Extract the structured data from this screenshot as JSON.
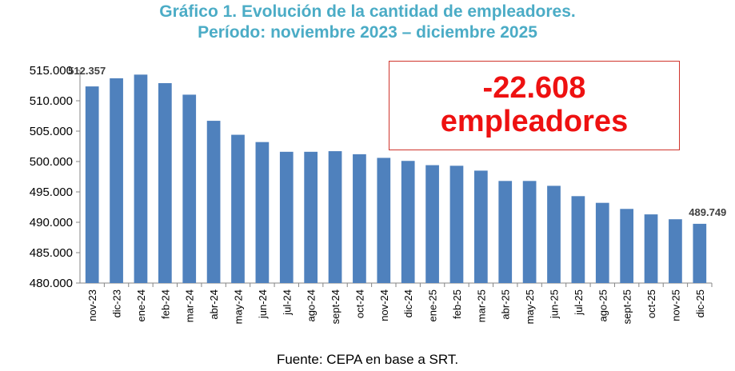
{
  "title_line_1": "Gráfico 1. Evolución de la cantidad de empleadores.",
  "title_line_2": "Período: noviembre 2023 – diciembre 2025",
  "callout": {
    "value": "-22.608",
    "label": "empleadores",
    "text_color": "#ee1111",
    "border_color": "#d0342c"
  },
  "source": "Fuente: CEPA en base a SRT.",
  "colors": {
    "bar": "#4f81bd",
    "title": "#4bacc6"
  },
  "chart_data": {
    "type": "bar",
    "title": "Gráfico 1. Evolución de la cantidad de empleadores.",
    "subtitle": "Período: noviembre 2023 – diciembre 2025",
    "xlabel": "",
    "ylabel": "",
    "ylim": [
      480000,
      515000
    ],
    "yticks": [
      480000,
      485000,
      490000,
      495000,
      500000,
      505000,
      510000,
      515000
    ],
    "ytick_labels": [
      "480.000",
      "485.000",
      "490.000",
      "495.000",
      "500.000",
      "505.000",
      "510.000",
      "515.000"
    ],
    "grid": false,
    "legend": "none",
    "categories": [
      "nov-23",
      "dic-23",
      "ene-24",
      "feb-24",
      "mar-24",
      "abr-24",
      "may-24",
      "jun-24",
      "jul-24",
      "ago-24",
      "sept-24",
      "oct-24",
      "nov-24",
      "dic-24",
      "ene-25",
      "feb-25",
      "mar-25",
      "abr-25",
      "may-25",
      "jun-25",
      "jul-25",
      "ago-25",
      "sept-25",
      "oct-25",
      "nov-25",
      "dic-25"
    ],
    "values": [
      512357,
      513700,
      514300,
      512900,
      511000,
      506700,
      504400,
      503200,
      501600,
      501600,
      501700,
      501200,
      500600,
      500100,
      499400,
      499300,
      498500,
      496800,
      496800,
      496000,
      494300,
      493200,
      492200,
      491300,
      490500,
      489749
    ],
    "data_labels": [
      {
        "index": 0,
        "text": "512.357"
      },
      {
        "index": 25,
        "text": "489.749"
      }
    ]
  }
}
